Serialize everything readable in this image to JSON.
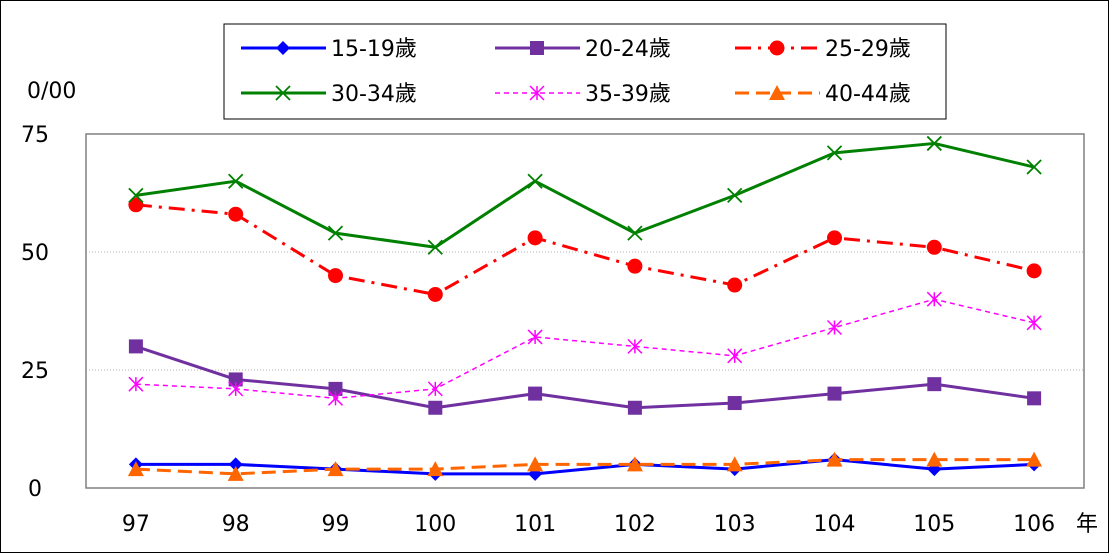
{
  "chart_data": {
    "type": "line",
    "title": "",
    "xlabel": "年",
    "ylabel": "0/00",
    "categories": [
      "97",
      "98",
      "99",
      "100",
      "101",
      "102",
      "103",
      "104",
      "105",
      "106"
    ],
    "ylim": [
      0,
      75
    ],
    "yticks": [
      0,
      25,
      50,
      75
    ],
    "grid": "horizontal dotted",
    "legend_position": "top-center",
    "series": [
      {
        "name": "15-19歲",
        "values": [
          5,
          5,
          4,
          3,
          3,
          5,
          4,
          6,
          4,
          5
        ],
        "color": "#0000FF",
        "marker": "diamond",
        "line_style": "solid"
      },
      {
        "name": "20-24歲",
        "values": [
          30,
          23,
          21,
          17,
          20,
          17,
          18,
          20,
          22,
          19
        ],
        "color": "#7030A0",
        "marker": "square",
        "line_style": "solid"
      },
      {
        "name": "25-29歲",
        "values": [
          60,
          58,
          45,
          41,
          53,
          47,
          43,
          53,
          51,
          46
        ],
        "color": "#FF0000",
        "marker": "circle",
        "line_style": "dash-dot"
      },
      {
        "name": "30-34歲",
        "values": [
          62,
          65,
          54,
          51,
          65,
          54,
          62,
          71,
          73,
          68
        ],
        "color": "#008000",
        "marker": "x",
        "line_style": "solid"
      },
      {
        "name": "35-39歲",
        "values": [
          22,
          21,
          19,
          21,
          32,
          30,
          28,
          34,
          40,
          35
        ],
        "color": "#FF00FF",
        "marker": "asterisk",
        "line_style": "dotted"
      },
      {
        "name": "40-44歲",
        "values": [
          4,
          3,
          4,
          4,
          5,
          5,
          5,
          6,
          6,
          6
        ],
        "color": "#FF6600",
        "marker": "triangle",
        "line_style": "dashed"
      }
    ]
  }
}
